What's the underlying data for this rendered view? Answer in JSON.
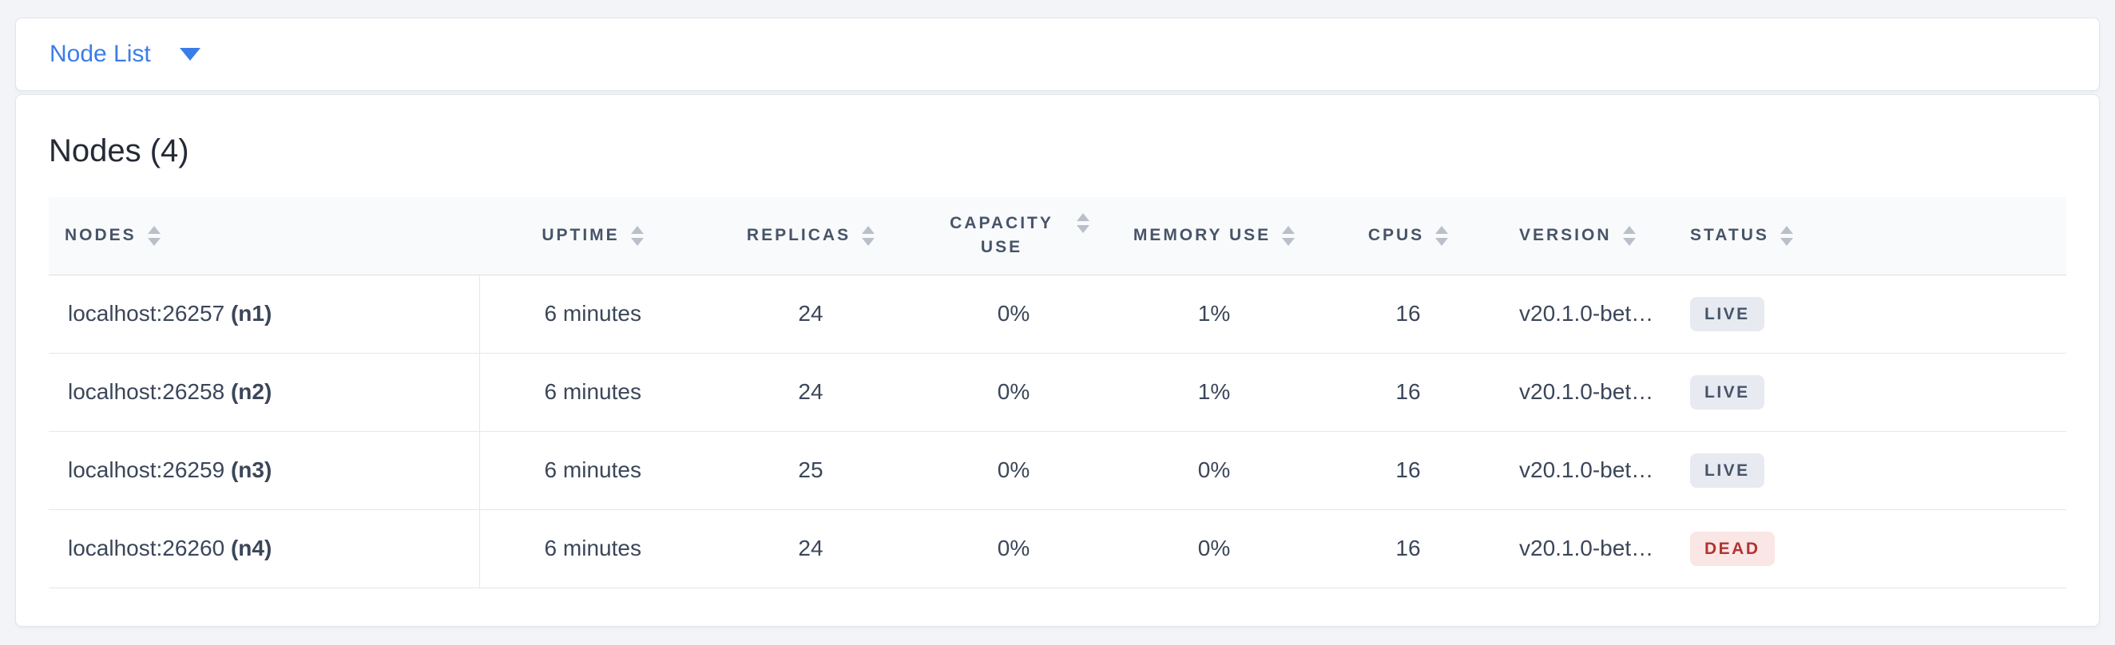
{
  "toolbar": {
    "dropdown_label": "Node List"
  },
  "panel": {
    "title": "Nodes (4)"
  },
  "table": {
    "columns": [
      {
        "label": "NODES",
        "key": "address",
        "align": "left",
        "wrap": false
      },
      {
        "label": "UPTIME",
        "key": "uptime",
        "align": "center",
        "wrap": false
      },
      {
        "label": "REPLICAS",
        "key": "replicas",
        "align": "center",
        "wrap": false
      },
      {
        "label": "CAPACITY USE",
        "key": "capacity_use",
        "align": "center",
        "wrap": true
      },
      {
        "label": "MEMORY USE",
        "key": "memory_use",
        "align": "center",
        "wrap": false
      },
      {
        "label": "CPUS",
        "key": "cpus",
        "align": "center",
        "wrap": false
      },
      {
        "label": "VERSION",
        "key": "version",
        "align": "left",
        "wrap": false
      },
      {
        "label": "STATUS",
        "key": "status",
        "align": "left",
        "wrap": false
      }
    ],
    "rows": [
      {
        "address": "localhost:26257",
        "id": "(n1)",
        "uptime": "6 minutes",
        "replicas": "24",
        "capacity_use": "0%",
        "memory_use": "1%",
        "cpus": "16",
        "version": "v20.1.0-bet…",
        "status": "LIVE"
      },
      {
        "address": "localhost:26258",
        "id": "(n2)",
        "uptime": "6 minutes",
        "replicas": "24",
        "capacity_use": "0%",
        "memory_use": "1%",
        "cpus": "16",
        "version": "v20.1.0-bet…",
        "status": "LIVE"
      },
      {
        "address": "localhost:26259",
        "id": "(n3)",
        "uptime": "6 minutes",
        "replicas": "25",
        "capacity_use": "0%",
        "memory_use": "0%",
        "cpus": "16",
        "version": "v20.1.0-bet…",
        "status": "LIVE"
      },
      {
        "address": "localhost:26260",
        "id": "(n4)",
        "uptime": "6 minutes",
        "replicas": "24",
        "capacity_use": "0%",
        "memory_use": "0%",
        "cpus": "16",
        "version": "v20.1.0-bet…",
        "status": "DEAD"
      }
    ]
  },
  "colors": {
    "accent_blue": "#3B7DE8",
    "live_badge_bg": "#E7EAF1",
    "live_badge_text": "#475468",
    "dead_badge_bg": "#FAE6E5",
    "dead_badge_text": "#B13431"
  }
}
